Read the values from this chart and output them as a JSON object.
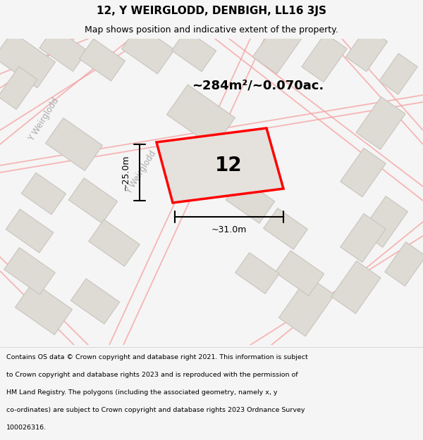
{
  "title": "12, Y WEIRGLODD, DENBIGH, LL16 3JS",
  "subtitle": "Map shows position and indicative extent of the property.",
  "footer_lines": [
    "Contains OS data © Crown copyright and database right 2021. This information is subject",
    "to Crown copyright and database rights 2023 and is reproduced with the permission of",
    "HM Land Registry. The polygons (including the associated geometry, namely x, y",
    "co-ordinates) are subject to Crown copyright and database rights 2023 Ordnance Survey",
    "100026316."
  ],
  "area_label": "~284m²/~0.070ac.",
  "dim_width": "~31.0m",
  "dim_height": "~25.0m",
  "house_number": "12",
  "street_label_1": "Y Weirglodd",
  "street_label_2": "Y Weirglodd",
  "bg_color": "#f5f5f5",
  "map_bg": "#eeece8",
  "building_color": "#dedad4",
  "building_edge": "#c8c4be",
  "road_outline_color": "#f5a0a0",
  "plot_color": "#ff0000",
  "plot_fill": "#e5e2dd",
  "title_bg": "#ffffff",
  "footer_bg": "#ffffff"
}
